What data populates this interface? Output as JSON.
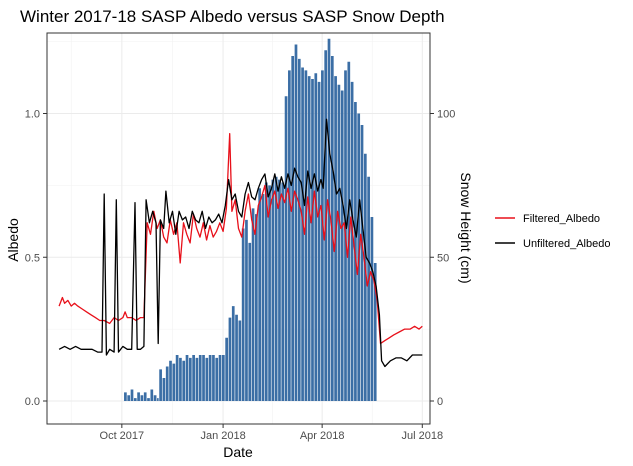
{
  "chart_data": {
    "type": "bar+line",
    "title": "Winter 2017-18 SASP Albedo versus SASP Snow Depth",
    "xlabel": "Date",
    "ylabel": "Albedo",
    "y2label": "Snow Height (cm)",
    "xlim": [
      "2017-07-25",
      "2018-07-08"
    ],
    "ylim": [
      -0.08,
      1.28
    ],
    "y2lim": [
      -8,
      128
    ],
    "x_ticks": [
      {
        "date": "2017-10-01",
        "label": "Oct 2017"
      },
      {
        "date": "2018-01-01",
        "label": "Jan 2018"
      },
      {
        "date": "2018-04-01",
        "label": "Apr 2018"
      },
      {
        "date": "2018-07-01",
        "label": "Jul 2018"
      }
    ],
    "y_ticks": [
      "0.0",
      "0.5",
      "1.0"
    ],
    "y2_ticks": [
      "0",
      "50",
      "100"
    ],
    "grid": true,
    "legend_position": "right",
    "colors": {
      "bars": "#3b6ea5",
      "filtered": "#e8101a",
      "unfiltered": "#000000",
      "grid": "#ebebeb",
      "axis": "#333333"
    },
    "series": [
      {
        "name": "Filtered_Albedo",
        "color": "#e8101a",
        "points": [
          [
            "2017-08-05",
            0.33
          ],
          [
            "2017-08-08",
            0.36
          ],
          [
            "2017-08-10",
            0.34
          ],
          [
            "2017-08-13",
            0.35
          ],
          [
            "2017-08-16",
            0.33
          ],
          [
            "2017-08-19",
            0.34
          ],
          [
            "2017-08-22",
            0.33
          ],
          [
            "2017-08-26",
            0.32
          ],
          [
            "2017-08-30",
            0.31
          ],
          [
            "2017-09-03",
            0.3
          ],
          [
            "2017-09-07",
            0.29
          ],
          [
            "2017-09-11",
            0.28
          ],
          [
            "2017-09-15",
            0.28
          ],
          [
            "2017-09-20",
            0.27
          ],
          [
            "2017-09-24",
            0.29
          ],
          [
            "2017-09-28",
            0.28
          ],
          [
            "2017-10-02",
            0.29
          ],
          [
            "2017-10-04",
            0.31
          ],
          [
            "2017-10-06",
            0.29
          ],
          [
            "2017-10-10",
            0.29
          ],
          [
            "2017-10-14",
            0.28
          ],
          [
            "2017-10-18",
            0.29
          ],
          [
            "2017-10-21",
            0.29
          ],
          [
            "2017-10-24",
            0.62
          ],
          [
            "2017-10-27",
            0.58
          ],
          [
            "2017-10-30",
            0.66
          ],
          [
            "2017-11-02",
            0.6
          ],
          [
            "2017-11-05",
            0.63
          ],
          [
            "2017-11-08",
            0.57
          ],
          [
            "2017-11-11",
            0.55
          ],
          [
            "2017-11-14",
            0.63
          ],
          [
            "2017-11-17",
            0.58
          ],
          [
            "2017-11-20",
            0.62
          ],
          [
            "2017-11-23",
            0.48
          ],
          [
            "2017-11-26",
            0.62
          ],
          [
            "2017-11-29",
            0.58
          ],
          [
            "2017-12-02",
            0.55
          ],
          [
            "2017-12-05",
            0.65
          ],
          [
            "2017-12-08",
            0.6
          ],
          [
            "2017-12-11",
            0.57
          ],
          [
            "2017-12-14",
            0.62
          ],
          [
            "2017-12-17",
            0.56
          ],
          [
            "2017-12-20",
            0.61
          ],
          [
            "2017-12-23",
            0.57
          ],
          [
            "2017-12-26",
            0.59
          ],
          [
            "2017-12-29",
            0.62
          ],
          [
            "2018-01-01",
            0.59
          ],
          [
            "2018-01-04",
            0.67
          ],
          [
            "2018-01-07",
            0.93
          ],
          [
            "2018-01-09",
            0.66
          ],
          [
            "2018-01-12",
            0.7
          ],
          [
            "2018-01-15",
            0.6
          ],
          [
            "2018-01-18",
            0.57
          ],
          [
            "2018-01-21",
            0.66
          ],
          [
            "2018-01-24",
            0.72
          ],
          [
            "2018-01-27",
            0.63
          ],
          [
            "2018-01-30",
            0.58
          ],
          [
            "2018-02-02",
            0.68
          ],
          [
            "2018-02-05",
            0.71
          ],
          [
            "2018-02-08",
            0.75
          ],
          [
            "2018-02-11",
            0.64
          ],
          [
            "2018-02-14",
            0.7
          ],
          [
            "2018-02-17",
            0.73
          ],
          [
            "2018-02-20",
            0.67
          ],
          [
            "2018-02-23",
            0.72
          ],
          [
            "2018-02-26",
            0.69
          ],
          [
            "2018-03-01",
            0.74
          ],
          [
            "2018-03-04",
            0.66
          ],
          [
            "2018-03-07",
            0.73
          ],
          [
            "2018-03-10",
            0.7
          ],
          [
            "2018-03-13",
            0.66
          ],
          [
            "2018-03-16",
            0.58
          ],
          [
            "2018-03-19",
            0.71
          ],
          [
            "2018-03-22",
            0.62
          ],
          [
            "2018-03-25",
            0.73
          ],
          [
            "2018-03-28",
            0.64
          ],
          [
            "2018-03-31",
            0.68
          ],
          [
            "2018-04-03",
            0.56
          ],
          [
            "2018-04-06",
            0.7
          ],
          [
            "2018-04-09",
            0.63
          ],
          [
            "2018-04-12",
            0.52
          ],
          [
            "2018-04-15",
            0.66
          ],
          [
            "2018-04-18",
            0.6
          ],
          [
            "2018-04-21",
            0.62
          ],
          [
            "2018-04-24",
            0.5
          ],
          [
            "2018-04-27",
            0.64
          ],
          [
            "2018-04-30",
            0.54
          ],
          [
            "2018-05-03",
            0.44
          ],
          [
            "2018-05-06",
            0.58
          ],
          [
            "2018-05-09",
            0.5
          ],
          [
            "2018-05-12",
            0.4
          ],
          [
            "2018-05-15",
            0.45
          ],
          [
            "2018-05-18",
            0.42
          ],
          [
            "2018-05-21",
            0.35
          ],
          [
            "2018-05-24",
            0.2
          ],
          [
            "2018-05-28",
            0.21
          ],
          [
            "2018-06-01",
            0.22
          ],
          [
            "2018-06-05",
            0.23
          ],
          [
            "2018-06-10",
            0.24
          ],
          [
            "2018-06-15",
            0.25
          ],
          [
            "2018-06-20",
            0.25
          ],
          [
            "2018-06-24",
            0.26
          ],
          [
            "2018-06-28",
            0.25
          ],
          [
            "2018-07-01",
            0.26
          ]
        ]
      },
      {
        "name": "Unfiltered_Albedo",
        "color": "#000000",
        "points": [
          [
            "2017-08-05",
            0.18
          ],
          [
            "2017-08-10",
            0.19
          ],
          [
            "2017-08-15",
            0.18
          ],
          [
            "2017-08-20",
            0.19
          ],
          [
            "2017-08-25",
            0.18
          ],
          [
            "2017-08-30",
            0.18
          ],
          [
            "2017-09-04",
            0.18
          ],
          [
            "2017-09-09",
            0.17
          ],
          [
            "2017-09-13",
            0.17
          ],
          [
            "2017-09-15",
            0.72
          ],
          [
            "2017-09-17",
            0.16
          ],
          [
            "2017-09-20",
            0.18
          ],
          [
            "2017-09-24",
            0.17
          ],
          [
            "2017-09-26",
            0.7
          ],
          [
            "2017-09-28",
            0.17
          ],
          [
            "2017-10-02",
            0.19
          ],
          [
            "2017-10-06",
            0.18
          ],
          [
            "2017-10-10",
            0.18
          ],
          [
            "2017-10-13",
            0.69
          ],
          [
            "2017-10-15",
            0.18
          ],
          [
            "2017-10-18",
            0.18
          ],
          [
            "2017-10-21",
            0.19
          ],
          [
            "2017-10-23",
            0.7
          ],
          [
            "2017-10-26",
            0.62
          ],
          [
            "2017-10-29",
            0.66
          ],
          [
            "2017-11-01",
            0.62
          ],
          [
            "2017-11-03",
            0.2
          ],
          [
            "2017-11-05",
            0.63
          ],
          [
            "2017-11-08",
            0.6
          ],
          [
            "2017-11-10",
            0.73
          ],
          [
            "2017-11-13",
            0.62
          ],
          [
            "2017-11-16",
            0.66
          ],
          [
            "2017-11-19",
            0.58
          ],
          [
            "2017-11-22",
            0.66
          ],
          [
            "2017-11-25",
            0.63
          ],
          [
            "2017-11-28",
            0.64
          ],
          [
            "2017-12-01",
            0.6
          ],
          [
            "2017-12-04",
            0.66
          ],
          [
            "2017-12-07",
            0.63
          ],
          [
            "2017-12-10",
            0.62
          ],
          [
            "2017-12-13",
            0.66
          ],
          [
            "2017-12-16",
            0.6
          ],
          [
            "2017-12-19",
            0.64
          ],
          [
            "2017-12-22",
            0.62
          ],
          [
            "2017-12-25",
            0.63
          ],
          [
            "2017-12-28",
            0.65
          ],
          [
            "2017-12-31",
            0.62
          ],
          [
            "2018-01-03",
            0.68
          ],
          [
            "2018-01-06",
            0.77
          ],
          [
            "2018-01-09",
            0.7
          ],
          [
            "2018-01-12",
            0.72
          ],
          [
            "2018-01-15",
            0.66
          ],
          [
            "2018-01-18",
            0.64
          ],
          [
            "2018-01-21",
            0.72
          ],
          [
            "2018-01-24",
            0.76
          ],
          [
            "2018-01-27",
            0.71
          ],
          [
            "2018-01-30",
            0.7
          ],
          [
            "2018-02-02",
            0.74
          ],
          [
            "2018-02-05",
            0.77
          ],
          [
            "2018-02-08",
            0.79
          ],
          [
            "2018-02-11",
            0.71
          ],
          [
            "2018-02-14",
            0.74
          ],
          [
            "2018-02-17",
            0.79
          ],
          [
            "2018-02-20",
            0.73
          ],
          [
            "2018-02-23",
            0.78
          ],
          [
            "2018-02-26",
            0.74
          ],
          [
            "2018-03-01",
            0.79
          ],
          [
            "2018-03-04",
            0.75
          ],
          [
            "2018-03-07",
            0.81
          ],
          [
            "2018-03-10",
            0.78
          ],
          [
            "2018-03-13",
            0.76
          ],
          [
            "2018-03-16",
            0.68
          ],
          [
            "2018-03-19",
            0.8
          ],
          [
            "2018-03-22",
            0.74
          ],
          [
            "2018-03-25",
            0.79
          ],
          [
            "2018-03-28",
            0.73
          ],
          [
            "2018-03-31",
            0.77
          ],
          [
            "2018-04-02",
            0.74
          ],
          [
            "2018-04-05",
            0.98
          ],
          [
            "2018-04-08",
            0.86
          ],
          [
            "2018-04-11",
            0.8
          ],
          [
            "2018-04-14",
            0.72
          ],
          [
            "2018-04-17",
            0.74
          ],
          [
            "2018-04-20",
            0.68
          ],
          [
            "2018-04-23",
            0.6
          ],
          [
            "2018-04-26",
            0.7
          ],
          [
            "2018-04-29",
            0.63
          ],
          [
            "2018-05-02",
            0.57
          ],
          [
            "2018-05-05",
            0.7
          ],
          [
            "2018-05-08",
            0.6
          ],
          [
            "2018-05-11",
            0.5
          ],
          [
            "2018-05-14",
            0.48
          ],
          [
            "2018-05-17",
            0.45
          ],
          [
            "2018-05-20",
            0.4
          ],
          [
            "2018-05-23",
            0.3
          ],
          [
            "2018-05-25",
            0.14
          ],
          [
            "2018-05-28",
            0.12
          ],
          [
            "2018-06-02",
            0.14
          ],
          [
            "2018-06-07",
            0.15
          ],
          [
            "2018-06-12",
            0.15
          ],
          [
            "2018-06-17",
            0.14
          ],
          [
            "2018-06-22",
            0.16
          ],
          [
            "2018-06-27",
            0.16
          ],
          [
            "2018-07-01",
            0.16
          ]
        ]
      }
    ],
    "bars": {
      "name": "Snow Height (cm)",
      "color": "#3b6ea5",
      "points": [
        [
          "2017-10-03",
          3
        ],
        [
          "2017-10-06",
          2
        ],
        [
          "2017-10-09",
          4
        ],
        [
          "2017-10-12",
          1
        ],
        [
          "2017-10-15",
          3
        ],
        [
          "2017-10-18",
          2
        ],
        [
          "2017-10-21",
          3
        ],
        [
          "2017-10-24",
          1
        ],
        [
          "2017-10-27",
          4
        ],
        [
          "2017-10-30",
          2
        ],
        [
          "2017-11-02",
          1
        ],
        [
          "2017-11-04",
          11
        ],
        [
          "2017-11-07",
          8
        ],
        [
          "2017-11-10",
          12
        ],
        [
          "2017-11-13",
          14
        ],
        [
          "2017-11-16",
          13
        ],
        [
          "2017-11-19",
          16
        ],
        [
          "2017-11-22",
          15
        ],
        [
          "2017-11-25",
          14
        ],
        [
          "2017-11-28",
          16
        ],
        [
          "2017-12-01",
          15
        ],
        [
          "2017-12-04",
          16
        ],
        [
          "2017-12-07",
          15
        ],
        [
          "2017-12-10",
          16
        ],
        [
          "2017-12-13",
          16
        ],
        [
          "2017-12-16",
          15
        ],
        [
          "2017-12-19",
          16
        ],
        [
          "2017-12-22",
          16
        ],
        [
          "2017-12-25",
          15
        ],
        [
          "2017-12-28",
          16
        ],
        [
          "2017-12-31",
          16
        ],
        [
          "2018-01-03",
          22
        ],
        [
          "2018-01-06",
          29
        ],
        [
          "2018-01-09",
          33
        ],
        [
          "2018-01-12",
          30
        ],
        [
          "2018-01-15",
          28
        ],
        [
          "2018-01-18",
          60
        ],
        [
          "2018-01-21",
          63
        ],
        [
          "2018-01-24",
          55
        ],
        [
          "2018-01-27",
          67
        ],
        [
          "2018-01-30",
          65
        ],
        [
          "2018-02-02",
          74
        ],
        [
          "2018-02-05",
          72
        ],
        [
          "2018-02-08",
          76
        ],
        [
          "2018-02-11",
          75
        ],
        [
          "2018-02-14",
          77
        ],
        [
          "2018-02-17",
          78
        ],
        [
          "2018-02-20",
          77
        ],
        [
          "2018-02-23",
          76
        ],
        [
          "2018-02-26",
          106
        ],
        [
          "2018-03-01",
          115
        ],
        [
          "2018-03-04",
          120
        ],
        [
          "2018-03-07",
          124
        ],
        [
          "2018-03-10",
          119
        ],
        [
          "2018-03-13",
          116
        ],
        [
          "2018-03-16",
          115
        ],
        [
          "2018-03-19",
          113
        ],
        [
          "2018-03-22",
          112
        ],
        [
          "2018-03-25",
          114
        ],
        [
          "2018-03-28",
          111
        ],
        [
          "2018-03-31",
          115
        ],
        [
          "2018-04-03",
          122
        ],
        [
          "2018-04-06",
          126
        ],
        [
          "2018-04-09",
          120
        ],
        [
          "2018-04-12",
          113
        ],
        [
          "2018-04-15",
          110
        ],
        [
          "2018-04-18",
          108
        ],
        [
          "2018-04-21",
          115
        ],
        [
          "2018-04-24",
          118
        ],
        [
          "2018-04-27",
          111
        ],
        [
          "2018-04-30",
          104
        ],
        [
          "2018-05-03",
          100
        ],
        [
          "2018-05-06",
          96
        ],
        [
          "2018-05-09",
          86
        ],
        [
          "2018-05-12",
          78
        ],
        [
          "2018-05-15",
          64
        ],
        [
          "2018-05-18",
          48
        ]
      ]
    }
  }
}
